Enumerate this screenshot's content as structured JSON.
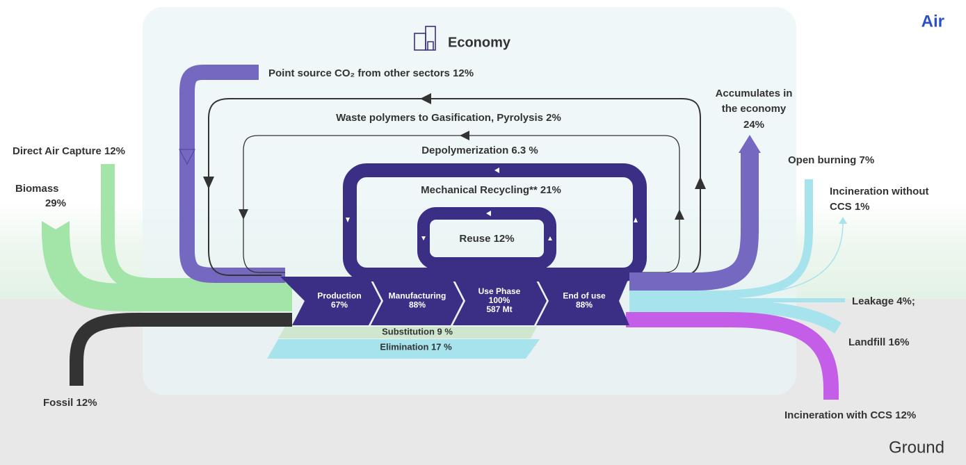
{
  "regions": {
    "air": "Air",
    "ground": "Ground",
    "economy": "Economy"
  },
  "loops": {
    "point_source": "Point source CO₂ from other sectors 12%",
    "gasification": "Waste polymers to Gasification, Pyrolysis  2%",
    "depolymerization": "Depolymerization 6.3 %",
    "mechanical": "Mechanical Recycling**  21%",
    "reuse": "Reuse 12%"
  },
  "inputs": {
    "direct_air_capture": "Direct Air Capture 12%",
    "biomass": [
      "Biomass",
      "29%"
    ],
    "fossil": "Fossil 12%"
  },
  "outputs": {
    "accumulates": [
      "Accumulates in",
      "the economy",
      "24%"
    ],
    "open_burning": "Open burning  7%",
    "incineration_without": [
      "Incineration without",
      "CCS 1%"
    ],
    "leakage": "Leakage 4%;",
    "landfill": "Landfill 16%",
    "incineration_with": "Incineration with CCS 12%"
  },
  "stages": [
    {
      "lines": [
        "Production",
        "67%"
      ]
    },
    {
      "lines": [
        "Manufacturing",
        "88%"
      ]
    },
    {
      "lines": [
        "Use Phase",
        "100%",
        "587 Mt"
      ]
    },
    {
      "lines": [
        "End of use",
        "88%"
      ]
    }
  ],
  "reduction": {
    "substitution": "Substitution 9 %",
    "elimination": "Elimination 17 %"
  }
}
